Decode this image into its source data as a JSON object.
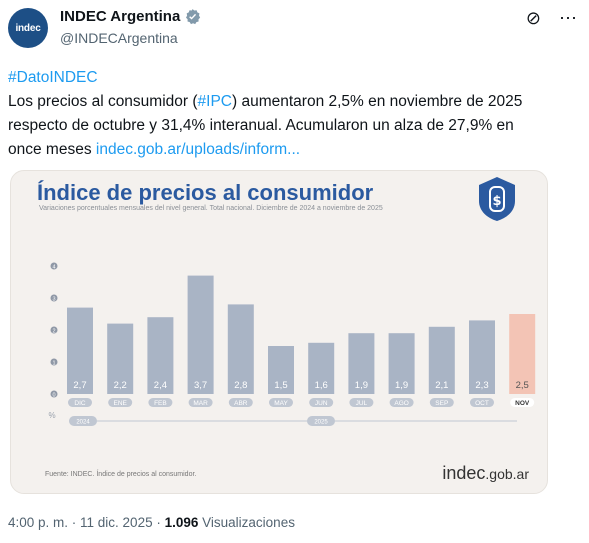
{
  "account": {
    "avatar_text": "indec",
    "name": "INDEC Argentina",
    "handle": "@INDECArgentina"
  },
  "tweet": {
    "hashtag": "#DatoINDEC",
    "line1_pre": "Los precios al consumidor (",
    "line1_tag": "#IPC",
    "line1_post": ") aumentaron 2,5% en noviembre de 2025",
    "line2": "respecto de octubre y 31,4% interanual. Acumularon un alza de 27,9% en",
    "line3_pre": "once meses ",
    "link": "indec.gob.ar/uploads/inform..."
  },
  "card": {
    "title": "Índice de precios al consumidor",
    "subtitle": "Variaciones porcentuales mensuales del nivel general. Total nacional. Diciembre de 2024 a noviembre de 2025",
    "source": "Fuente: INDEC. Índice de precios al consumidor.",
    "logo_main": "indec",
    "logo_suffix": ".gob.ar"
  },
  "chart_data": {
    "type": "bar",
    "title": "Índice de precios al consumidor",
    "categories": [
      "DIC",
      "ENE",
      "FEB",
      "MAR",
      "ABR",
      "MAY",
      "JUN",
      "JUL",
      "AGO",
      "SEP",
      "OCT",
      "NOV"
    ],
    "value_labels": [
      "2,7",
      "2,2",
      "2,4",
      "3,7",
      "2,8",
      "1,5",
      "1,6",
      "1,9",
      "1,9",
      "2,1",
      "2,3",
      "2,5"
    ],
    "values": [
      2.7,
      2.2,
      2.4,
      3.7,
      2.8,
      1.5,
      1.6,
      1.9,
      1.9,
      2.1,
      2.3,
      2.5
    ],
    "y_ticks": [
      "0",
      "1",
      "2",
      "3",
      "4"
    ],
    "ylim": [
      0,
      4
    ],
    "y_unit": "%",
    "years": [
      "2024",
      "2025"
    ],
    "colors": {
      "bar": "#a9b4c5",
      "highlight": "#f3c4b5"
    }
  },
  "footer": {
    "time": "4:00 p. m. · 11 dic. 2025 · ",
    "views_count": "1.096",
    "views_label": " Visualizaciones"
  }
}
